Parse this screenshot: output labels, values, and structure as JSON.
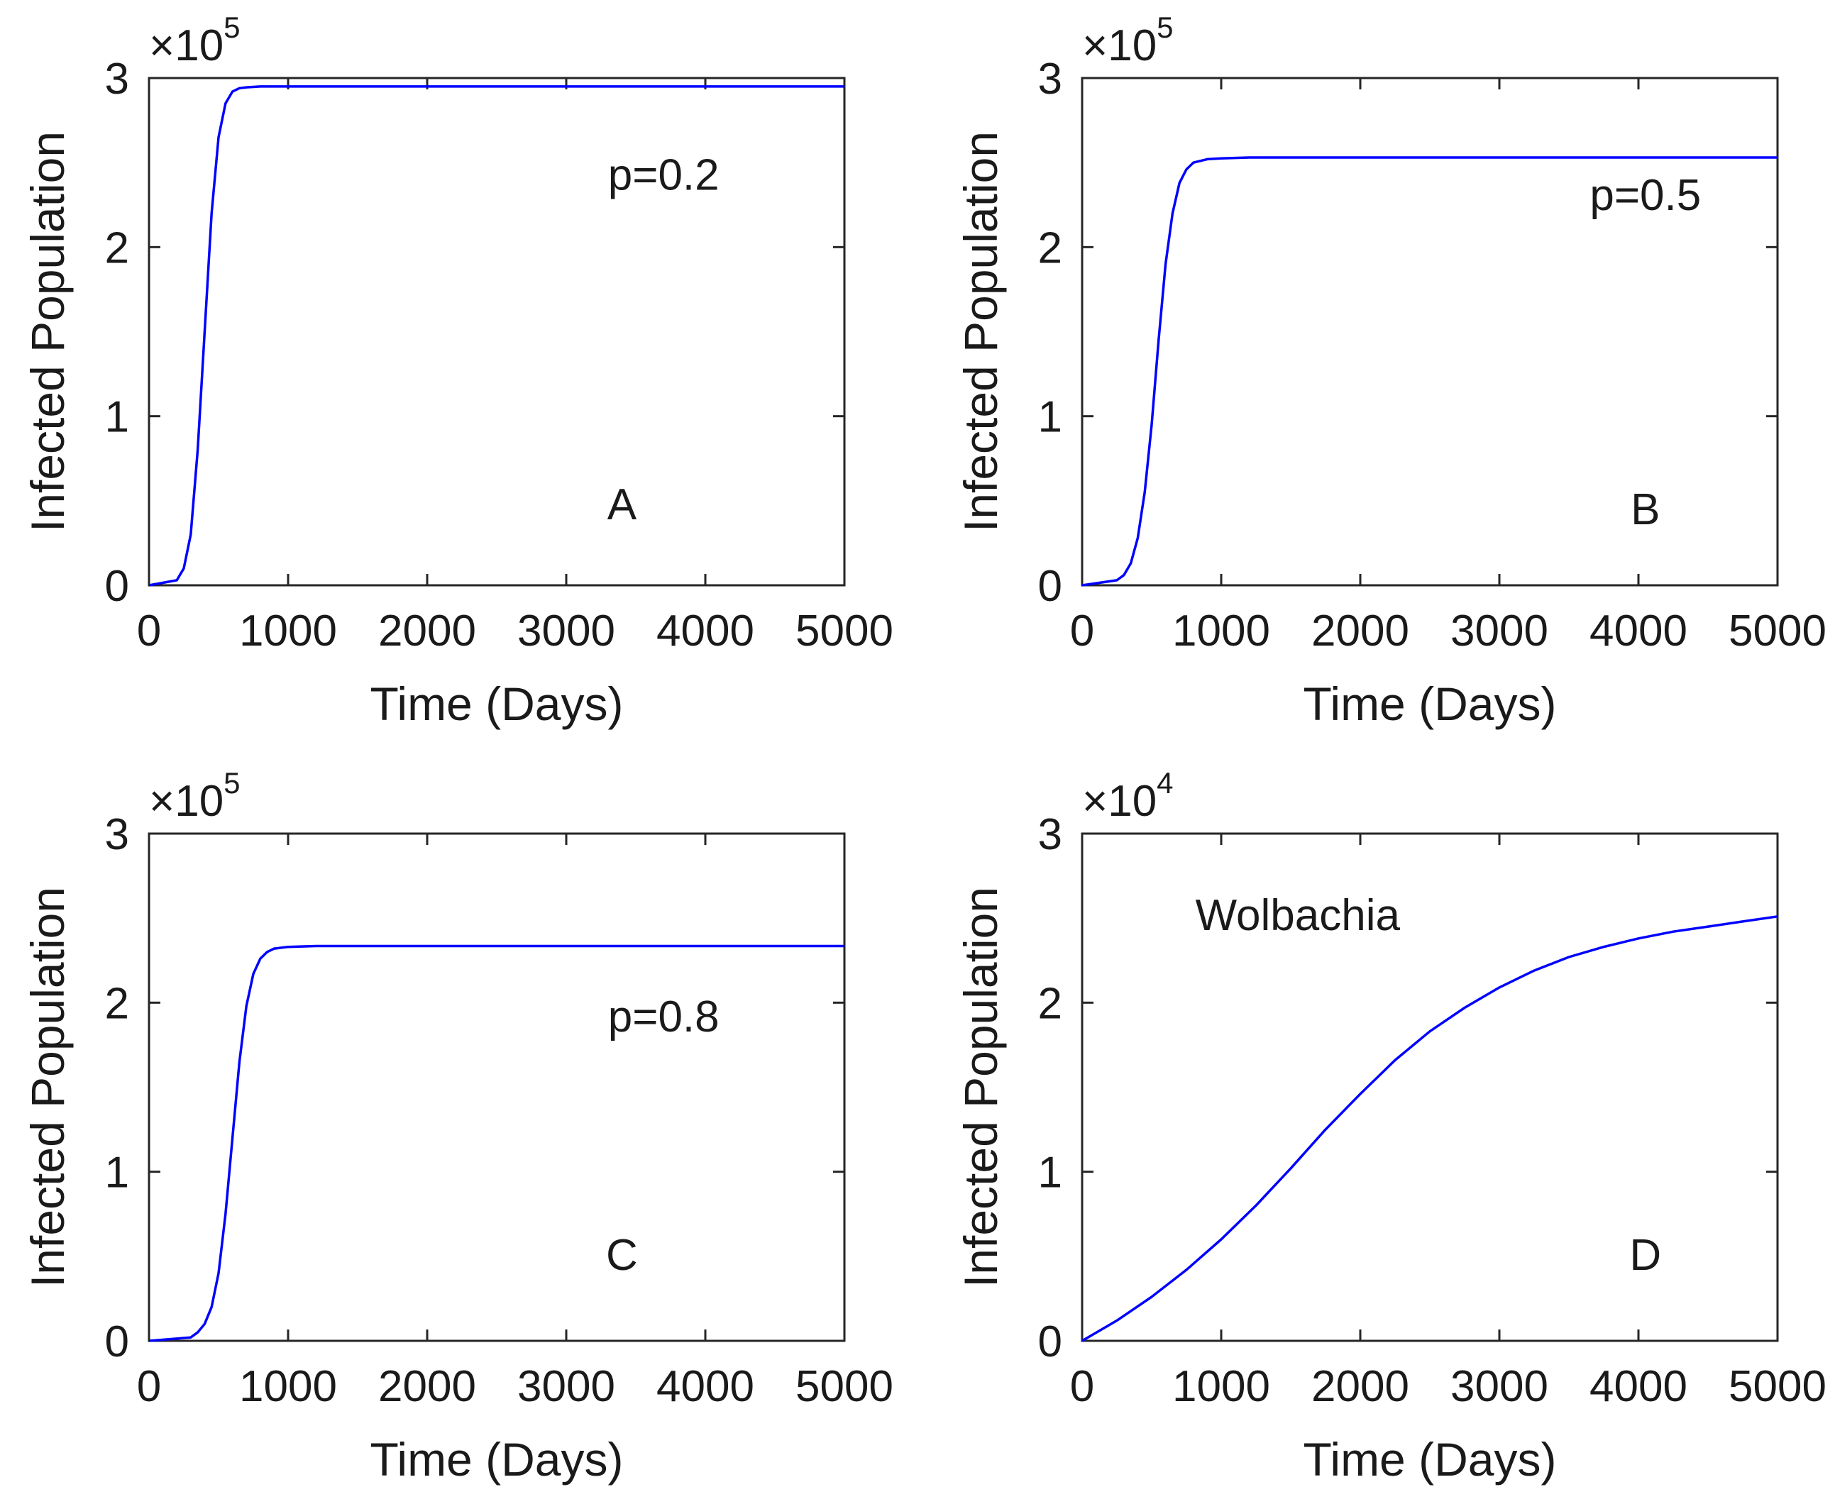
{
  "colors": {
    "series": "#0000ff",
    "axes": "#262626",
    "text": "#1a1a1a",
    "background": "#ffffff"
  },
  "chart_data": [
    {
      "id": "A",
      "type": "line",
      "title": "",
      "xlabel": "Time (Days)",
      "ylabel": "Infected Population",
      "xlim": [
        0,
        5000
      ],
      "ylim": [
        0,
        3
      ],
      "xticks": [
        "0",
        "1000",
        "2000",
        "3000",
        "4000",
        "5000"
      ],
      "yticks": [
        "0",
        "1",
        "2",
        "3"
      ],
      "multiplier": {
        "prefix": "×10",
        "exponent": "5"
      },
      "annotations": [
        "p=0.2",
        "A"
      ],
      "series": [
        {
          "name": "Infected",
          "color": "#0000ff",
          "x": [
            0,
            200,
            250,
            300,
            350,
            400,
            450,
            500,
            550,
            600,
            650,
            700,
            800,
            1000,
            5000
          ],
          "y": [
            0,
            0.03,
            0.1,
            0.3,
            0.8,
            1.5,
            2.2,
            2.65,
            2.85,
            2.92,
            2.94,
            2.945,
            2.95,
            2.95,
            2.95
          ]
        }
      ]
    },
    {
      "id": "B",
      "type": "line",
      "title": "",
      "xlabel": "Time (Days)",
      "ylabel": "Infected Population",
      "xlim": [
        0,
        5000
      ],
      "ylim": [
        0,
        3
      ],
      "xticks": [
        "0",
        "1000",
        "2000",
        "3000",
        "4000",
        "5000"
      ],
      "yticks": [
        "0",
        "1",
        "2",
        "3"
      ],
      "multiplier": {
        "prefix": "×10",
        "exponent": "5"
      },
      "annotations": [
        "p=0.5",
        "B"
      ],
      "series": [
        {
          "name": "Infected",
          "color": "#0000ff",
          "x": [
            0,
            250,
            300,
            350,
            400,
            450,
            500,
            550,
            600,
            650,
            700,
            750,
            800,
            900,
            1000,
            1200,
            5000
          ],
          "y": [
            0,
            0.03,
            0.06,
            0.13,
            0.28,
            0.55,
            0.95,
            1.45,
            1.9,
            2.2,
            2.38,
            2.46,
            2.5,
            2.52,
            2.525,
            2.53,
            2.53
          ]
        }
      ]
    },
    {
      "id": "C",
      "type": "line",
      "title": "",
      "xlabel": "Time (Days)",
      "ylabel": "Infected Population",
      "xlim": [
        0,
        5000
      ],
      "ylim": [
        0,
        3
      ],
      "xticks": [
        "0",
        "1000",
        "2000",
        "3000",
        "4000",
        "5000"
      ],
      "yticks": [
        "0",
        "1",
        "2",
        "3"
      ],
      "multiplier": {
        "prefix": "×10",
        "exponent": "5"
      },
      "annotations": [
        "p=0.8",
        "C"
      ],
      "series": [
        {
          "name": "Infected",
          "color": "#0000ff",
          "x": [
            0,
            300,
            350,
            400,
            450,
            500,
            550,
            600,
            650,
            700,
            750,
            800,
            850,
            900,
            1000,
            1200,
            5000
          ],
          "y": [
            0,
            0.02,
            0.05,
            0.1,
            0.2,
            0.4,
            0.75,
            1.2,
            1.65,
            1.98,
            2.17,
            2.26,
            2.3,
            2.32,
            2.33,
            2.335,
            2.335
          ]
        }
      ]
    },
    {
      "id": "D",
      "type": "line",
      "title": "",
      "xlabel": "Time (Days)",
      "ylabel": "Infected Population",
      "xlim": [
        0,
        5000
      ],
      "ylim": [
        0,
        3
      ],
      "xticks": [
        "0",
        "1000",
        "2000",
        "3000",
        "4000",
        "5000"
      ],
      "yticks": [
        "0",
        "1",
        "2",
        "3"
      ],
      "multiplier": {
        "prefix": "×10",
        "exponent": "4"
      },
      "annotations": [
        "Wolbachia",
        "D"
      ],
      "series": [
        {
          "name": "Infected",
          "color": "#0000ff",
          "x": [
            0,
            250,
            500,
            750,
            1000,
            1250,
            1500,
            1750,
            2000,
            2250,
            2500,
            2750,
            3000,
            3250,
            3500,
            3750,
            4000,
            4250,
            4500,
            4750,
            5000
          ],
          "y": [
            0,
            0.12,
            0.26,
            0.42,
            0.6,
            0.8,
            1.02,
            1.25,
            1.46,
            1.66,
            1.83,
            1.97,
            2.09,
            2.19,
            2.27,
            2.33,
            2.38,
            2.42,
            2.45,
            2.48,
            2.51
          ]
        }
      ]
    }
  ]
}
